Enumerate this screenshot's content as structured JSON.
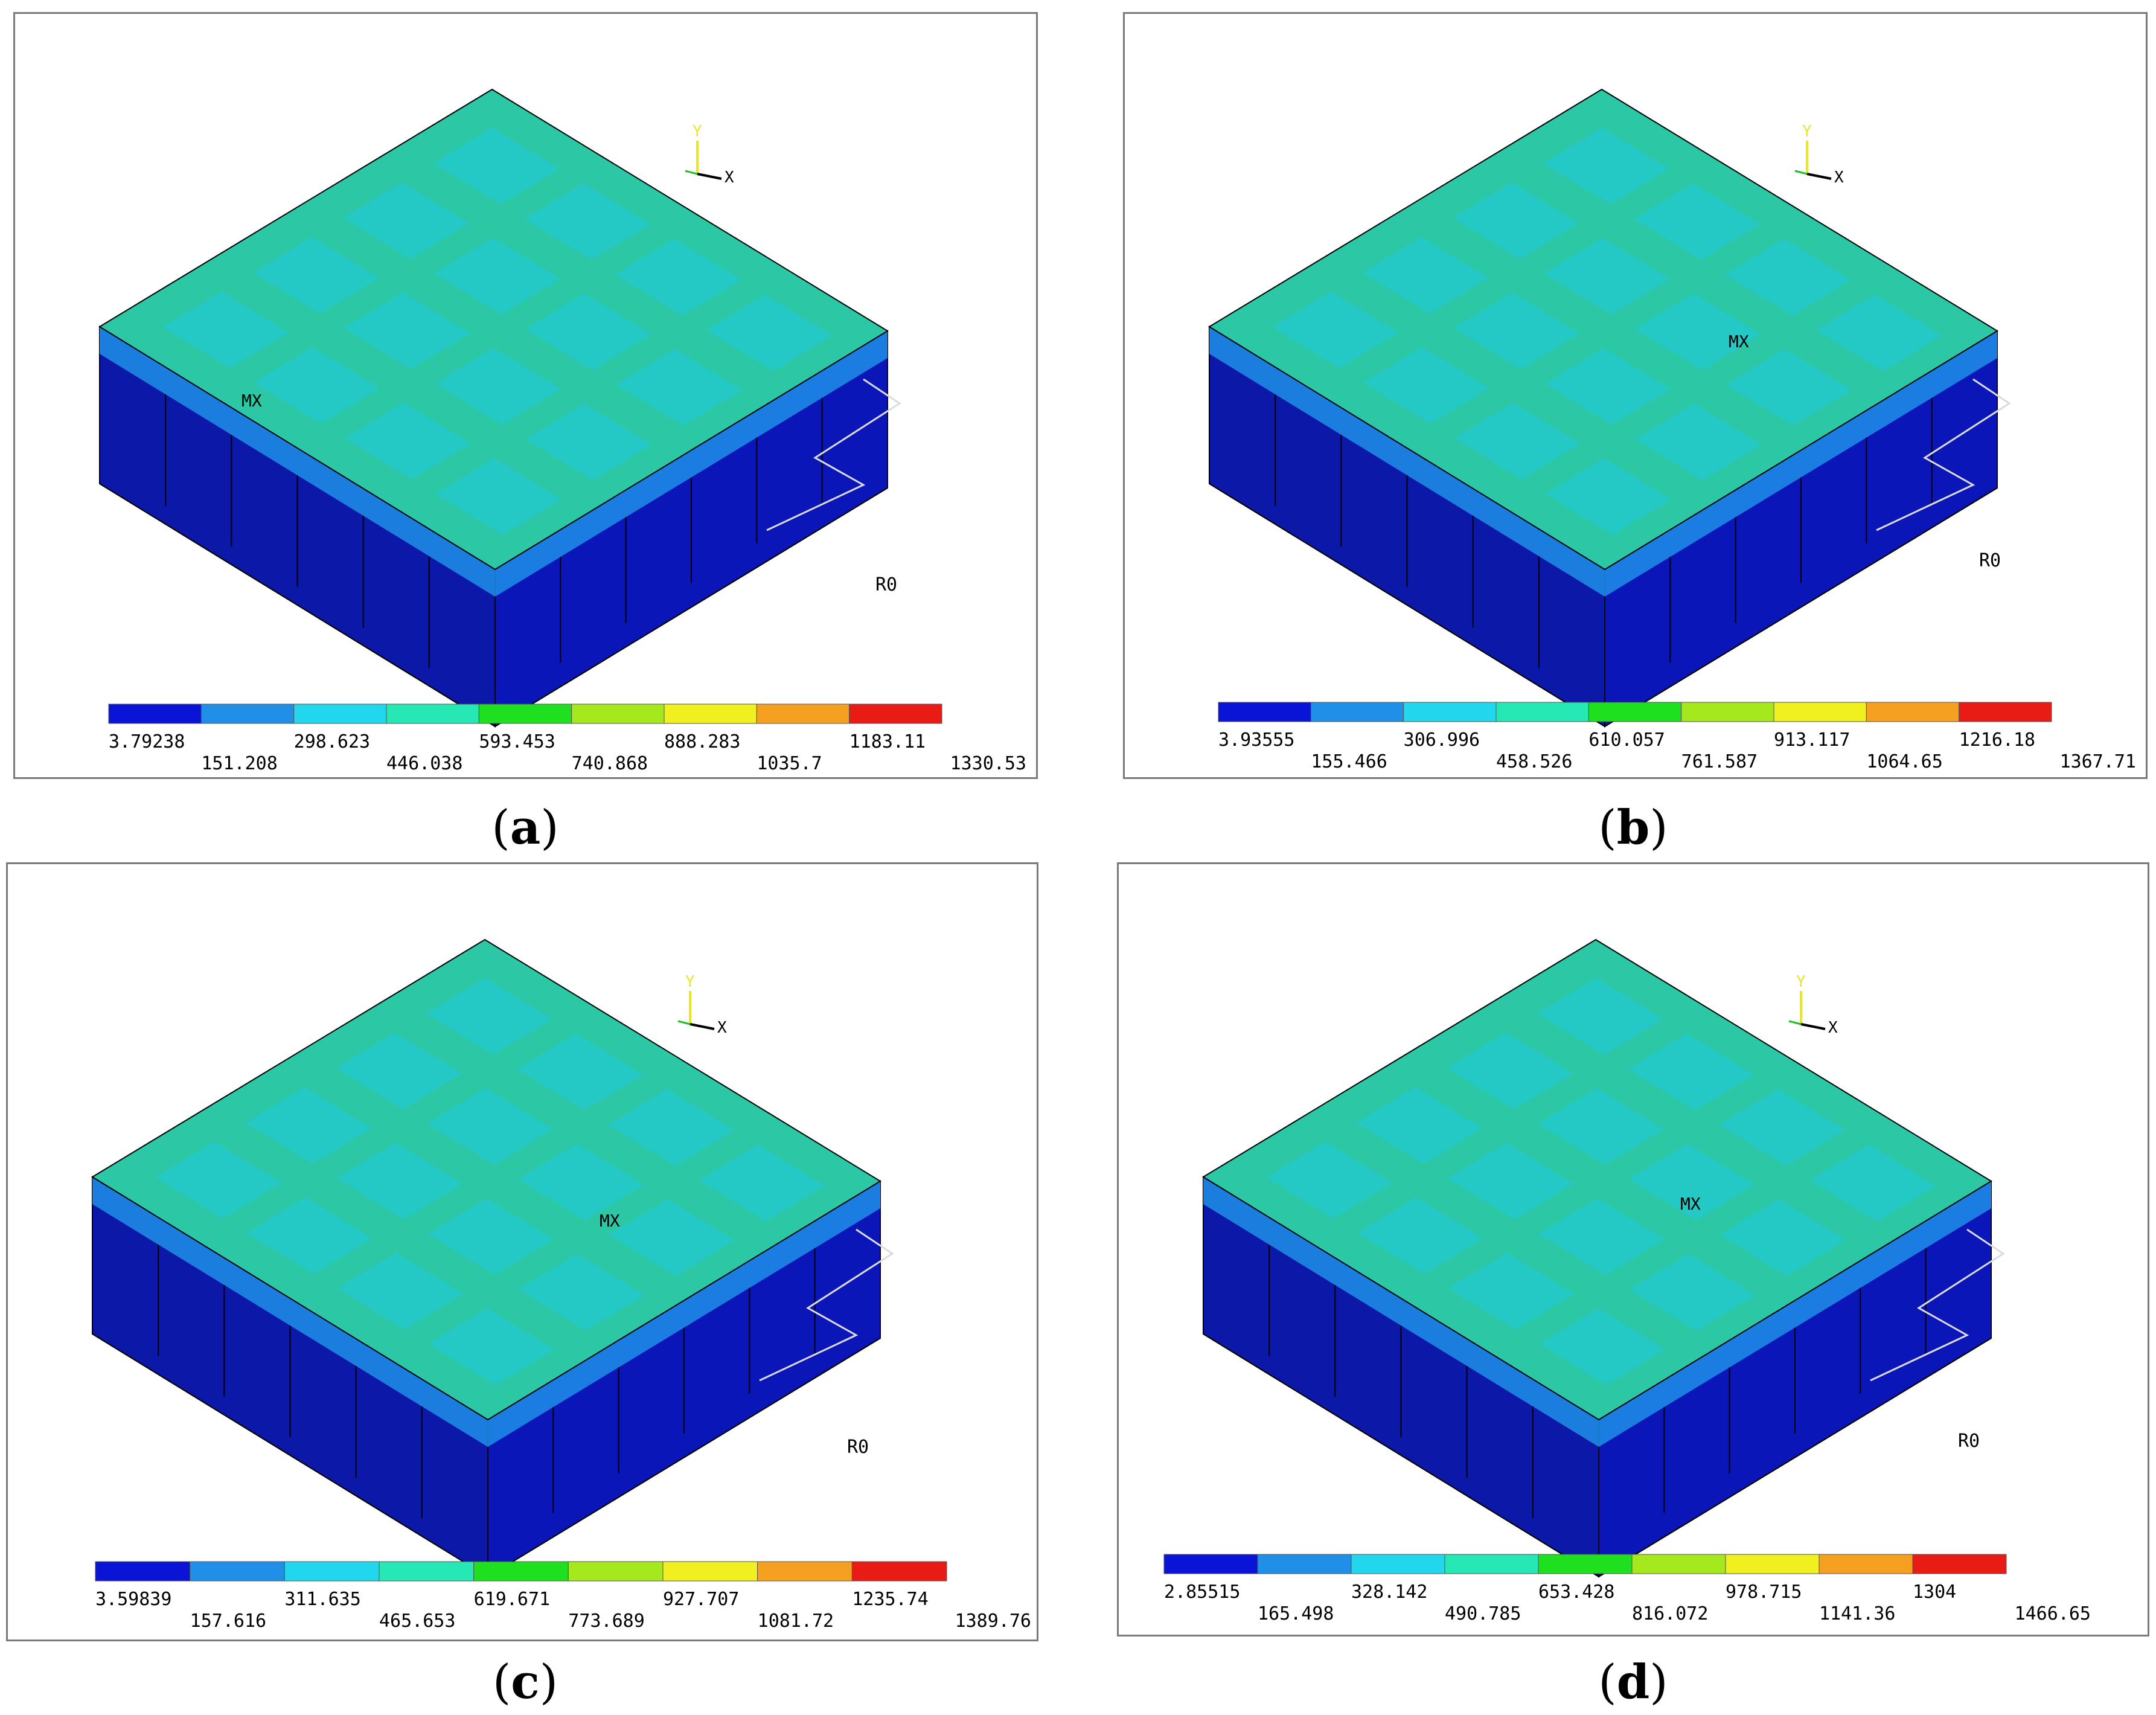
{
  "colormap": [
    "#0a14d6",
    "#1f8fe8",
    "#22d6ee",
    "#25e8b4",
    "#1ee01e",
    "#a6e81e",
    "#f0f020",
    "#f5a020",
    "#e81c14"
  ],
  "top_surface_color": "#2cc7a4",
  "side_color": "#0b18a8",
  "panels": [
    {
      "id": "a",
      "caption": "a",
      "axis": {
        "y": "Y",
        "x": "X"
      },
      "mx_label": "MX",
      "r0_label": "R0",
      "legend_top": [
        "3.79238",
        "298.623",
        "593.453",
        "888.283",
        "1183.11"
      ],
      "legend_bottom": [
        "151.208",
        "446.038",
        "740.868",
        "1035.7",
        "1330.53"
      ]
    },
    {
      "id": "b",
      "caption": "b",
      "axis": {
        "y": "Y",
        "x": "X"
      },
      "mx_label": "MX",
      "r0_label": "R0",
      "legend_top": [
        "3.93555",
        "306.996",
        "610.057",
        "913.117",
        "1216.18"
      ],
      "legend_bottom": [
        "155.466",
        "458.526",
        "761.587",
        "1064.65",
        "1367.71"
      ]
    },
    {
      "id": "c",
      "caption": "c",
      "axis": {
        "y": "Y",
        "x": "X"
      },
      "mx_label": "MX",
      "r0_label": "R0",
      "legend_top": [
        "3.59839",
        "311.635",
        "619.671",
        "927.707",
        "1235.74"
      ],
      "legend_bottom": [
        "157.616",
        "465.653",
        "773.689",
        "1081.72",
        "1389.76"
      ]
    },
    {
      "id": "d",
      "caption": "d",
      "axis": {
        "y": "Y",
        "x": "X"
      },
      "mx_label": "MX",
      "r0_label": "R0",
      "legend_top": [
        "2.85515",
        "328.142",
        "653.428",
        "978.715",
        "1304"
      ],
      "legend_bottom": [
        "165.498",
        "490.785",
        "816.072",
        "1141.36",
        "1466.65"
      ]
    }
  ]
}
